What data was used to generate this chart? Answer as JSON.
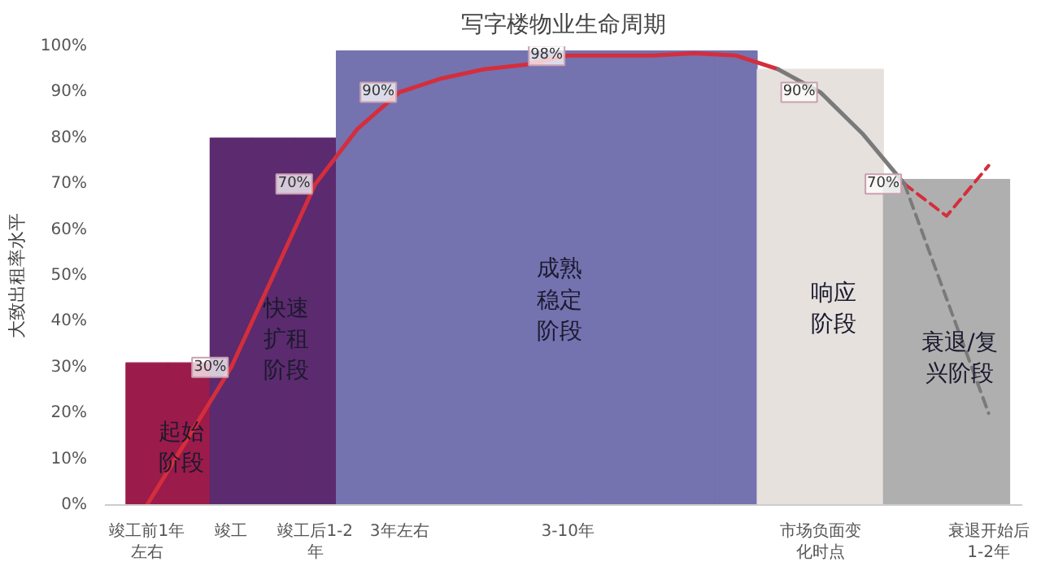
{
  "chart_data": {
    "type": "bar",
    "title": "写字楼物业生命周期",
    "ylabel": "大致出租率水平",
    "categories": [
      "竣工前1年左右",
      null,
      "竣工",
      null,
      "竣工后1-2年",
      null,
      "3年左右",
      null,
      null,
      null,
      "3-10年",
      null,
      null,
      null,
      null,
      null,
      "市场负面变化时点",
      null,
      null,
      null,
      "衰退开始后1-2年"
    ],
    "ylim": [
      0,
      100
    ],
    "yticks": [
      {
        "value": 0,
        "label": "0%"
      },
      {
        "value": 10,
        "label": "10%"
      },
      {
        "value": 20,
        "label": "20%"
      },
      {
        "value": 30,
        "label": "30%"
      },
      {
        "value": 40,
        "label": "40%"
      },
      {
        "value": 50,
        "label": "50%"
      },
      {
        "value": 60,
        "label": "60%"
      },
      {
        "value": 70,
        "label": "70%"
      },
      {
        "value": 80,
        "label": "80%"
      },
      {
        "value": 90,
        "label": "90%"
      },
      {
        "value": 100,
        "label": "100%"
      }
    ],
    "series": [
      {
        "values": [
          31,
          31,
          80,
          80,
          80,
          99,
          99,
          99,
          99,
          99,
          99,
          99,
          99,
          99,
          99,
          95,
          95,
          95,
          71,
          71,
          71
        ],
        "colors": [
          "#9b1b4a",
          "#9b1b4a",
          "#5c2a6e",
          "#5c2a6e",
          "#5c2a6e",
          "#7572b0",
          "#7572b0",
          "#7572b0",
          "#7572b0",
          "#7572b0",
          "#7572b0",
          "#7572b0",
          "#7572b0",
          "#7572b0",
          "#7572b0",
          "#e6e1dd",
          "#e6e1dd",
          "#e6e1dd",
          "#b0afaf",
          "#b0afaf",
          "#b0afaf"
        ]
      },
      {
        "type": "line",
        "color": "#d42e3c",
        "line_style": "solid",
        "values": [
          0,
          15,
          30,
          50,
          70,
          82,
          90,
          93,
          95,
          96,
          98,
          98,
          98,
          98.5,
          98,
          95,
          null,
          null,
          null,
          null,
          null
        ],
        "value_labels": [
          null,
          null,
          "30%",
          null,
          "70%",
          null,
          "90%",
          null,
          null,
          null,
          "98%",
          null,
          null,
          null,
          null,
          null,
          null,
          null,
          null,
          null,
          null
        ]
      },
      {
        "type": "line",
        "color": "#7a7a7a",
        "line_style": "solid",
        "values": [
          null,
          null,
          null,
          null,
          null,
          null,
          null,
          null,
          null,
          null,
          null,
          null,
          null,
          null,
          null,
          95,
          90,
          81,
          70,
          null,
          null
        ],
        "value_labels": [
          null,
          null,
          null,
          null,
          null,
          null,
          null,
          null,
          null,
          null,
          null,
          null,
          null,
          null,
          null,
          null,
          "90%",
          null,
          "70%",
          null,
          null
        ]
      },
      {
        "type": "line",
        "color": "#d42e3c",
        "line_style": "dashed",
        "values": [
          null,
          null,
          null,
          null,
          null,
          null,
          null,
          null,
          null,
          null,
          null,
          null,
          null,
          null,
          null,
          null,
          null,
          null,
          70,
          63,
          74
        ]
      },
      {
        "type": "line",
        "color": "#7a7a7a",
        "line_style": "dashed",
        "values": [
          null,
          null,
          null,
          null,
          null,
          null,
          null,
          null,
          null,
          null,
          null,
          null,
          null,
          null,
          null,
          null,
          null,
          null,
          70,
          45,
          20
        ]
      }
    ],
    "annotations": [
      "起始阶段",
      "快速扩租阶段",
      "成熟稳定阶段",
      "响应阶段",
      "衰退/复兴阶段"
    ],
    "grid": false
  }
}
